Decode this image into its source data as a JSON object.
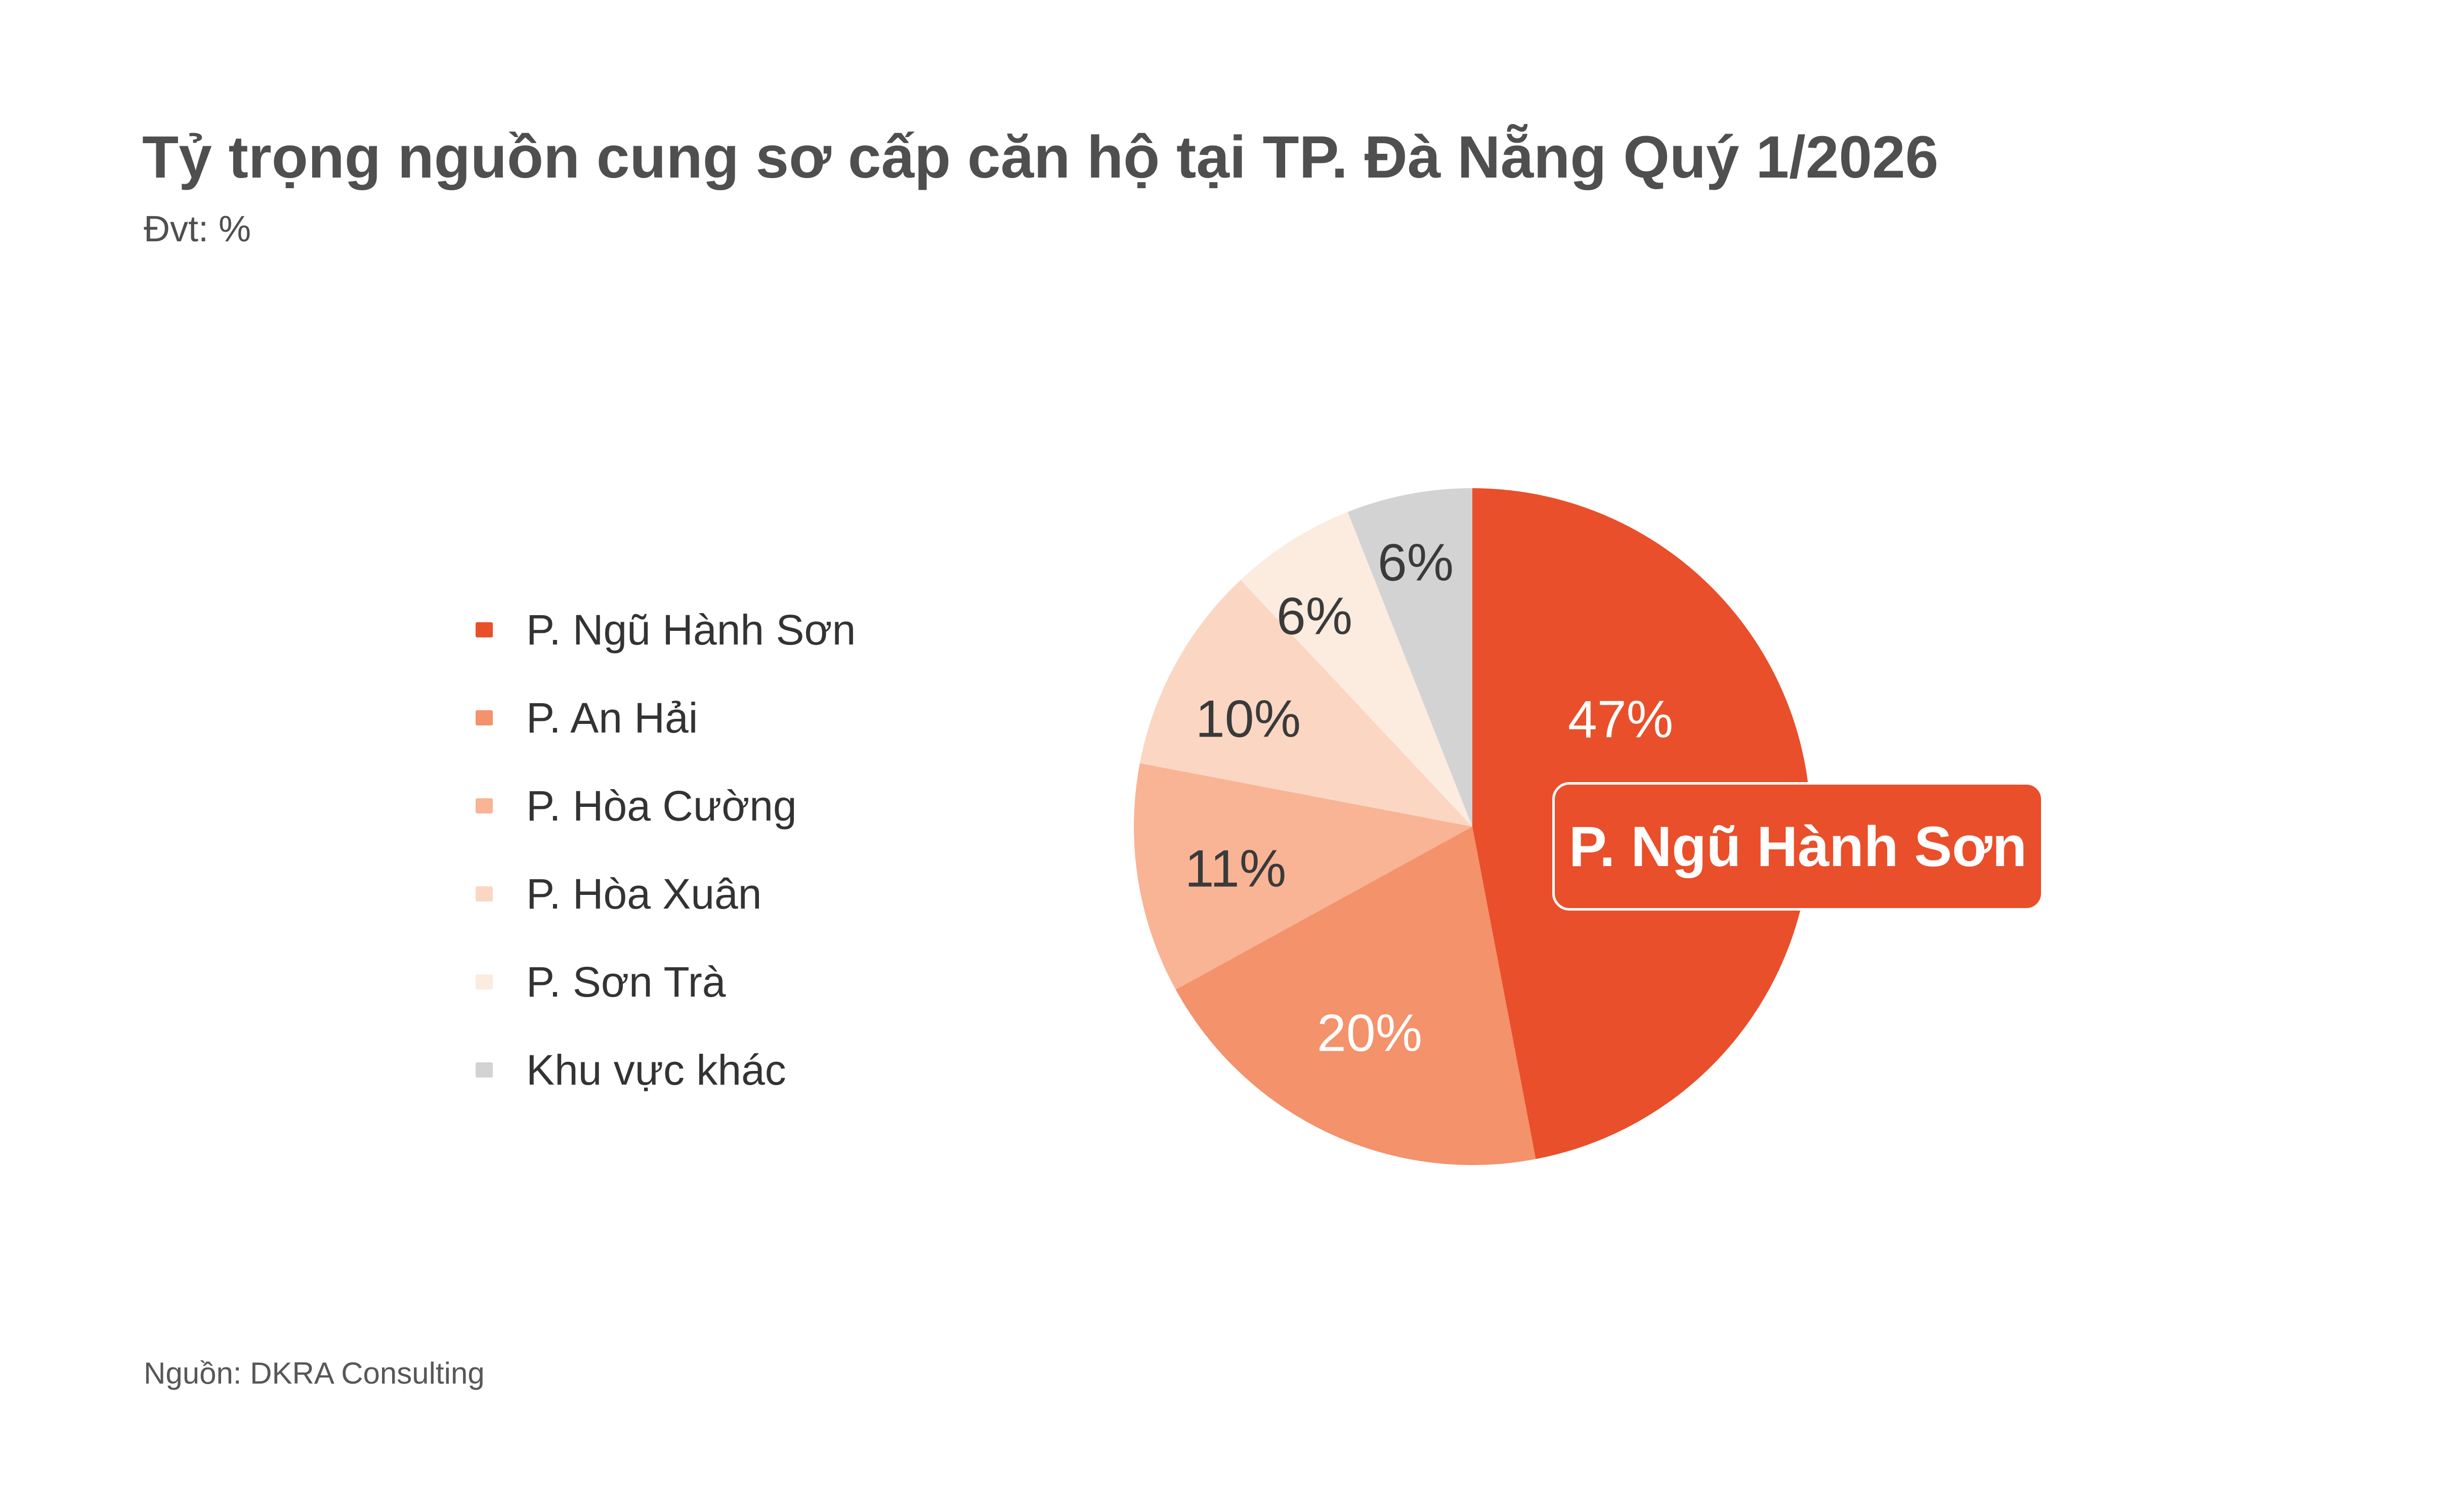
{
  "header": {
    "title": "Tỷ trọng nguồn cung sơ cấp căn hộ tại TP. Đà Nẵng Quý 1/2026",
    "unit_note": "Đvt: %"
  },
  "footer": {
    "source": "Nguồn: DKRA Consulting"
  },
  "chart_data": {
    "type": "pie",
    "title": "Tỷ trọng nguồn cung sơ cấp căn hộ tại TP. Đà Nẵng Quý 1/2026",
    "unit": "%",
    "legend_position": "left",
    "start_angle_deg": 0,
    "direction": "clockwise",
    "categories": [
      "P. Ngũ Hành Sơn",
      "P. An Hải",
      "P. Hòa Cường",
      "P. Hòa Xuân",
      "P. Sơn Trà",
      "Khu vực khác"
    ],
    "values": [
      47,
      20,
      11,
      10,
      6,
      6
    ],
    "display_labels": [
      "47%",
      "20%",
      "11%",
      "10%",
      "6%",
      "6%"
    ],
    "colors": [
      "#E94F2A",
      "#F3926B",
      "#F8B495",
      "#FBD7C3",
      "#FCEBDF",
      "#D3D3D3"
    ],
    "label_text_colors": [
      "#FFFFFF",
      "#FFFFFF",
      "#3A3A3A",
      "#3A3A3A",
      "#3A3A3A",
      "#3A3A3A"
    ],
    "highlight": {
      "slice": "P. Ngũ Hành Sơn",
      "tooltip_label": "P. Ngũ Hành Sơn",
      "tooltip_value": 47
    }
  }
}
